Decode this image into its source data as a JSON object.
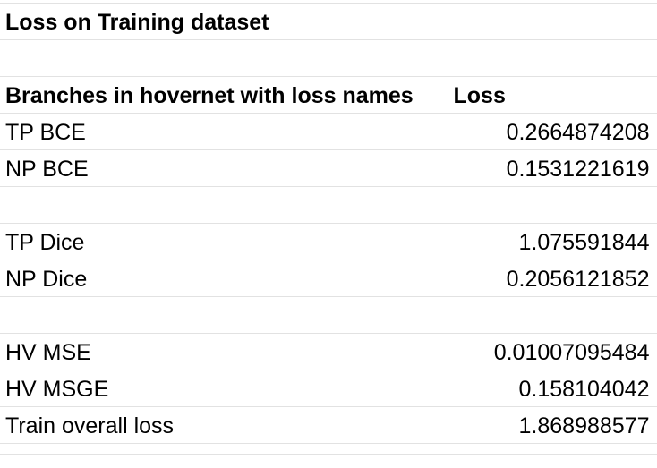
{
  "sheet": {
    "title": "Loss on Training dataset",
    "header": {
      "col1": "Branches in hovernet with loss names",
      "col2": "Loss"
    },
    "rows": [
      {
        "name": "TP BCE",
        "value": "0.2664874208"
      },
      {
        "name": "NP BCE",
        "value": "0.1531221619"
      },
      {
        "name": "TP Dice",
        "value": "1.075591844"
      },
      {
        "name": "NP Dice",
        "value": "0.2056121852"
      },
      {
        "name": "HV MSE",
        "value": "0.01007095484"
      },
      {
        "name": "HV MSGE",
        "value": "0.158104042"
      },
      {
        "name": "Train overall loss",
        "value": "1.868988577"
      }
    ]
  }
}
